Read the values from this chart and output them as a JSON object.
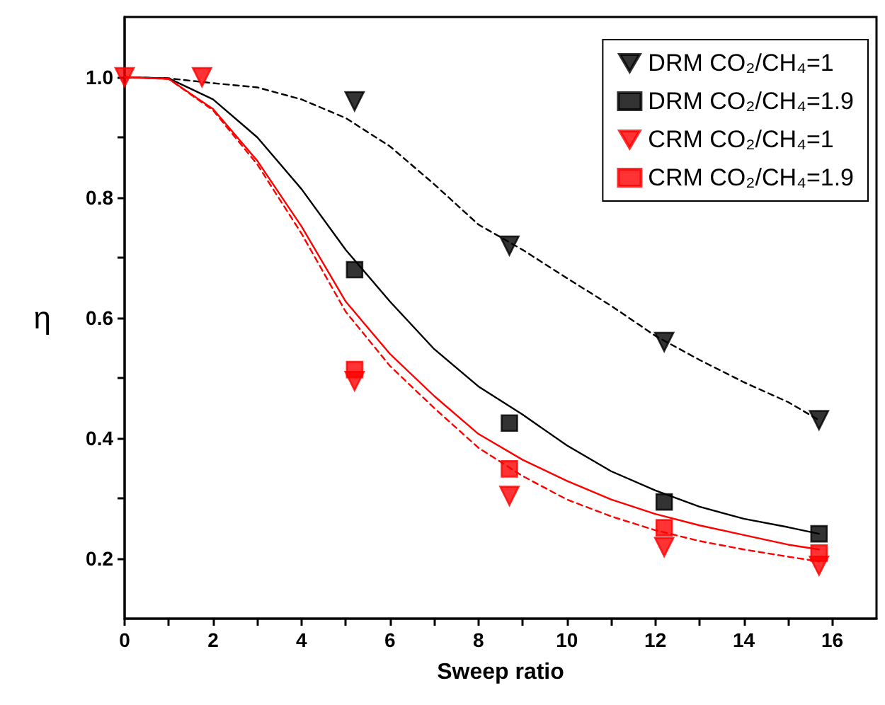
{
  "chart_data": {
    "type": "scatter",
    "xlabel": "Sweep ratio",
    "ylabel": "η",
    "xlim": [
      0,
      17
    ],
    "xticks": [
      0,
      {
        "value": 1,
        "label": null
      },
      2,
      {
        "value": 3,
        "label": null
      },
      4,
      {
        "value": 5,
        "label": null
      },
      6,
      {
        "value": 7,
        "label": null
      },
      8,
      {
        "value": 9,
        "label": null
      },
      10,
      {
        "value": 11,
        "label": null
      },
      12,
      {
        "value": 13,
        "label": null
      },
      14,
      {
        "value": 15,
        "label": null
      },
      16
    ],
    "ylim": [
      0.1,
      1.1
    ],
    "yticks": [
      0.2,
      {
        "value": 0.3,
        "label": null
      },
      0.4,
      {
        "value": 0.5,
        "label": null
      },
      0.6,
      {
        "value": 0.7,
        "label": null
      },
      0.8,
      {
        "value": 0.9,
        "label": null
      },
      {
        "value": 1.0,
        "label": "1.0"
      }
    ],
    "grid": false,
    "legend": "top right",
    "series": [
      {
        "type": "line",
        "color": "#000000",
        "line_style": "dashed",
        "marker": "none",
        "x": [
          0,
          1,
          2,
          3,
          4,
          5,
          6,
          7,
          8,
          9,
          10,
          11,
          12,
          13,
          14,
          15,
          15.7
        ],
        "values": [
          1.0,
          0.998,
          0.99,
          0.983,
          0.963,
          0.932,
          0.885,
          0.822,
          0.755,
          0.713,
          0.666,
          0.62,
          0.57,
          0.53,
          0.493,
          0.46,
          0.43
        ]
      },
      {
        "type": "line",
        "color": "#000000",
        "line_style": "solid",
        "marker": "none",
        "x": [
          0,
          1,
          2,
          3,
          4,
          5,
          6,
          7,
          8,
          9,
          10,
          11,
          12,
          13,
          14,
          15,
          15.7
        ],
        "values": [
          1.0,
          0.998,
          0.963,
          0.9,
          0.814,
          0.713,
          0.627,
          0.548,
          0.486,
          0.439,
          0.388,
          0.345,
          0.313,
          0.286,
          0.266,
          0.252,
          0.241
        ]
      },
      {
        "type": "line",
        "color": "#ff0000",
        "line_style": "dashed",
        "marker": "none",
        "x": [
          0,
          1,
          2,
          3,
          4,
          5,
          6,
          7,
          8,
          9,
          10,
          11,
          12,
          13,
          14,
          15,
          15.7
        ],
        "values": [
          1.0,
          0.997,
          0.945,
          0.855,
          0.74,
          0.61,
          0.52,
          0.45,
          0.384,
          0.337,
          0.298,
          0.27,
          0.247,
          0.229,
          0.215,
          0.203,
          0.195
        ]
      },
      {
        "type": "line",
        "color": "#ff0000",
        "line_style": "solid",
        "marker": "none",
        "x": [
          0,
          1,
          2,
          3,
          4,
          5,
          6,
          7,
          8,
          9,
          10,
          11,
          12,
          13,
          14,
          15,
          15.7
        ],
        "values": [
          1.0,
          0.997,
          0.947,
          0.861,
          0.752,
          0.627,
          0.54,
          0.47,
          0.407,
          0.364,
          0.329,
          0.298,
          0.274,
          0.255,
          0.239,
          0.223,
          0.215
        ]
      },
      {
        "name": "DRM CO₂/CH₄=1",
        "color": "#000000",
        "marker": "triangle",
        "x": [
          5.2,
          8.7,
          12.2,
          15.7
        ],
        "values": [
          0.96,
          0.72,
          0.56,
          0.43
        ]
      },
      {
        "name": "DRM CO₂/CH₄=1.9",
        "color": "#000000",
        "marker": "square",
        "x": [
          5.2,
          8.7,
          12.2,
          15.7
        ],
        "values": [
          0.68,
          0.425,
          0.294,
          0.241
        ]
      },
      {
        "name": "CRM CO₂/CH₄=1",
        "color": "#ff0000",
        "marker": "triangle",
        "x": [
          0,
          1.75,
          5.2,
          8.7,
          12.2,
          15.7
        ],
        "values": [
          1.0,
          1.0,
          0.495,
          0.304,
          0.219,
          0.188
        ]
      },
      {
        "name": "CRM CO₂/CH₄=1.9",
        "color": "#ff0000",
        "marker": "square",
        "x": [
          5.2,
          8.7,
          12.2,
          15.7
        ],
        "values": [
          0.514,
          0.349,
          0.251,
          0.209
        ]
      }
    ]
  }
}
